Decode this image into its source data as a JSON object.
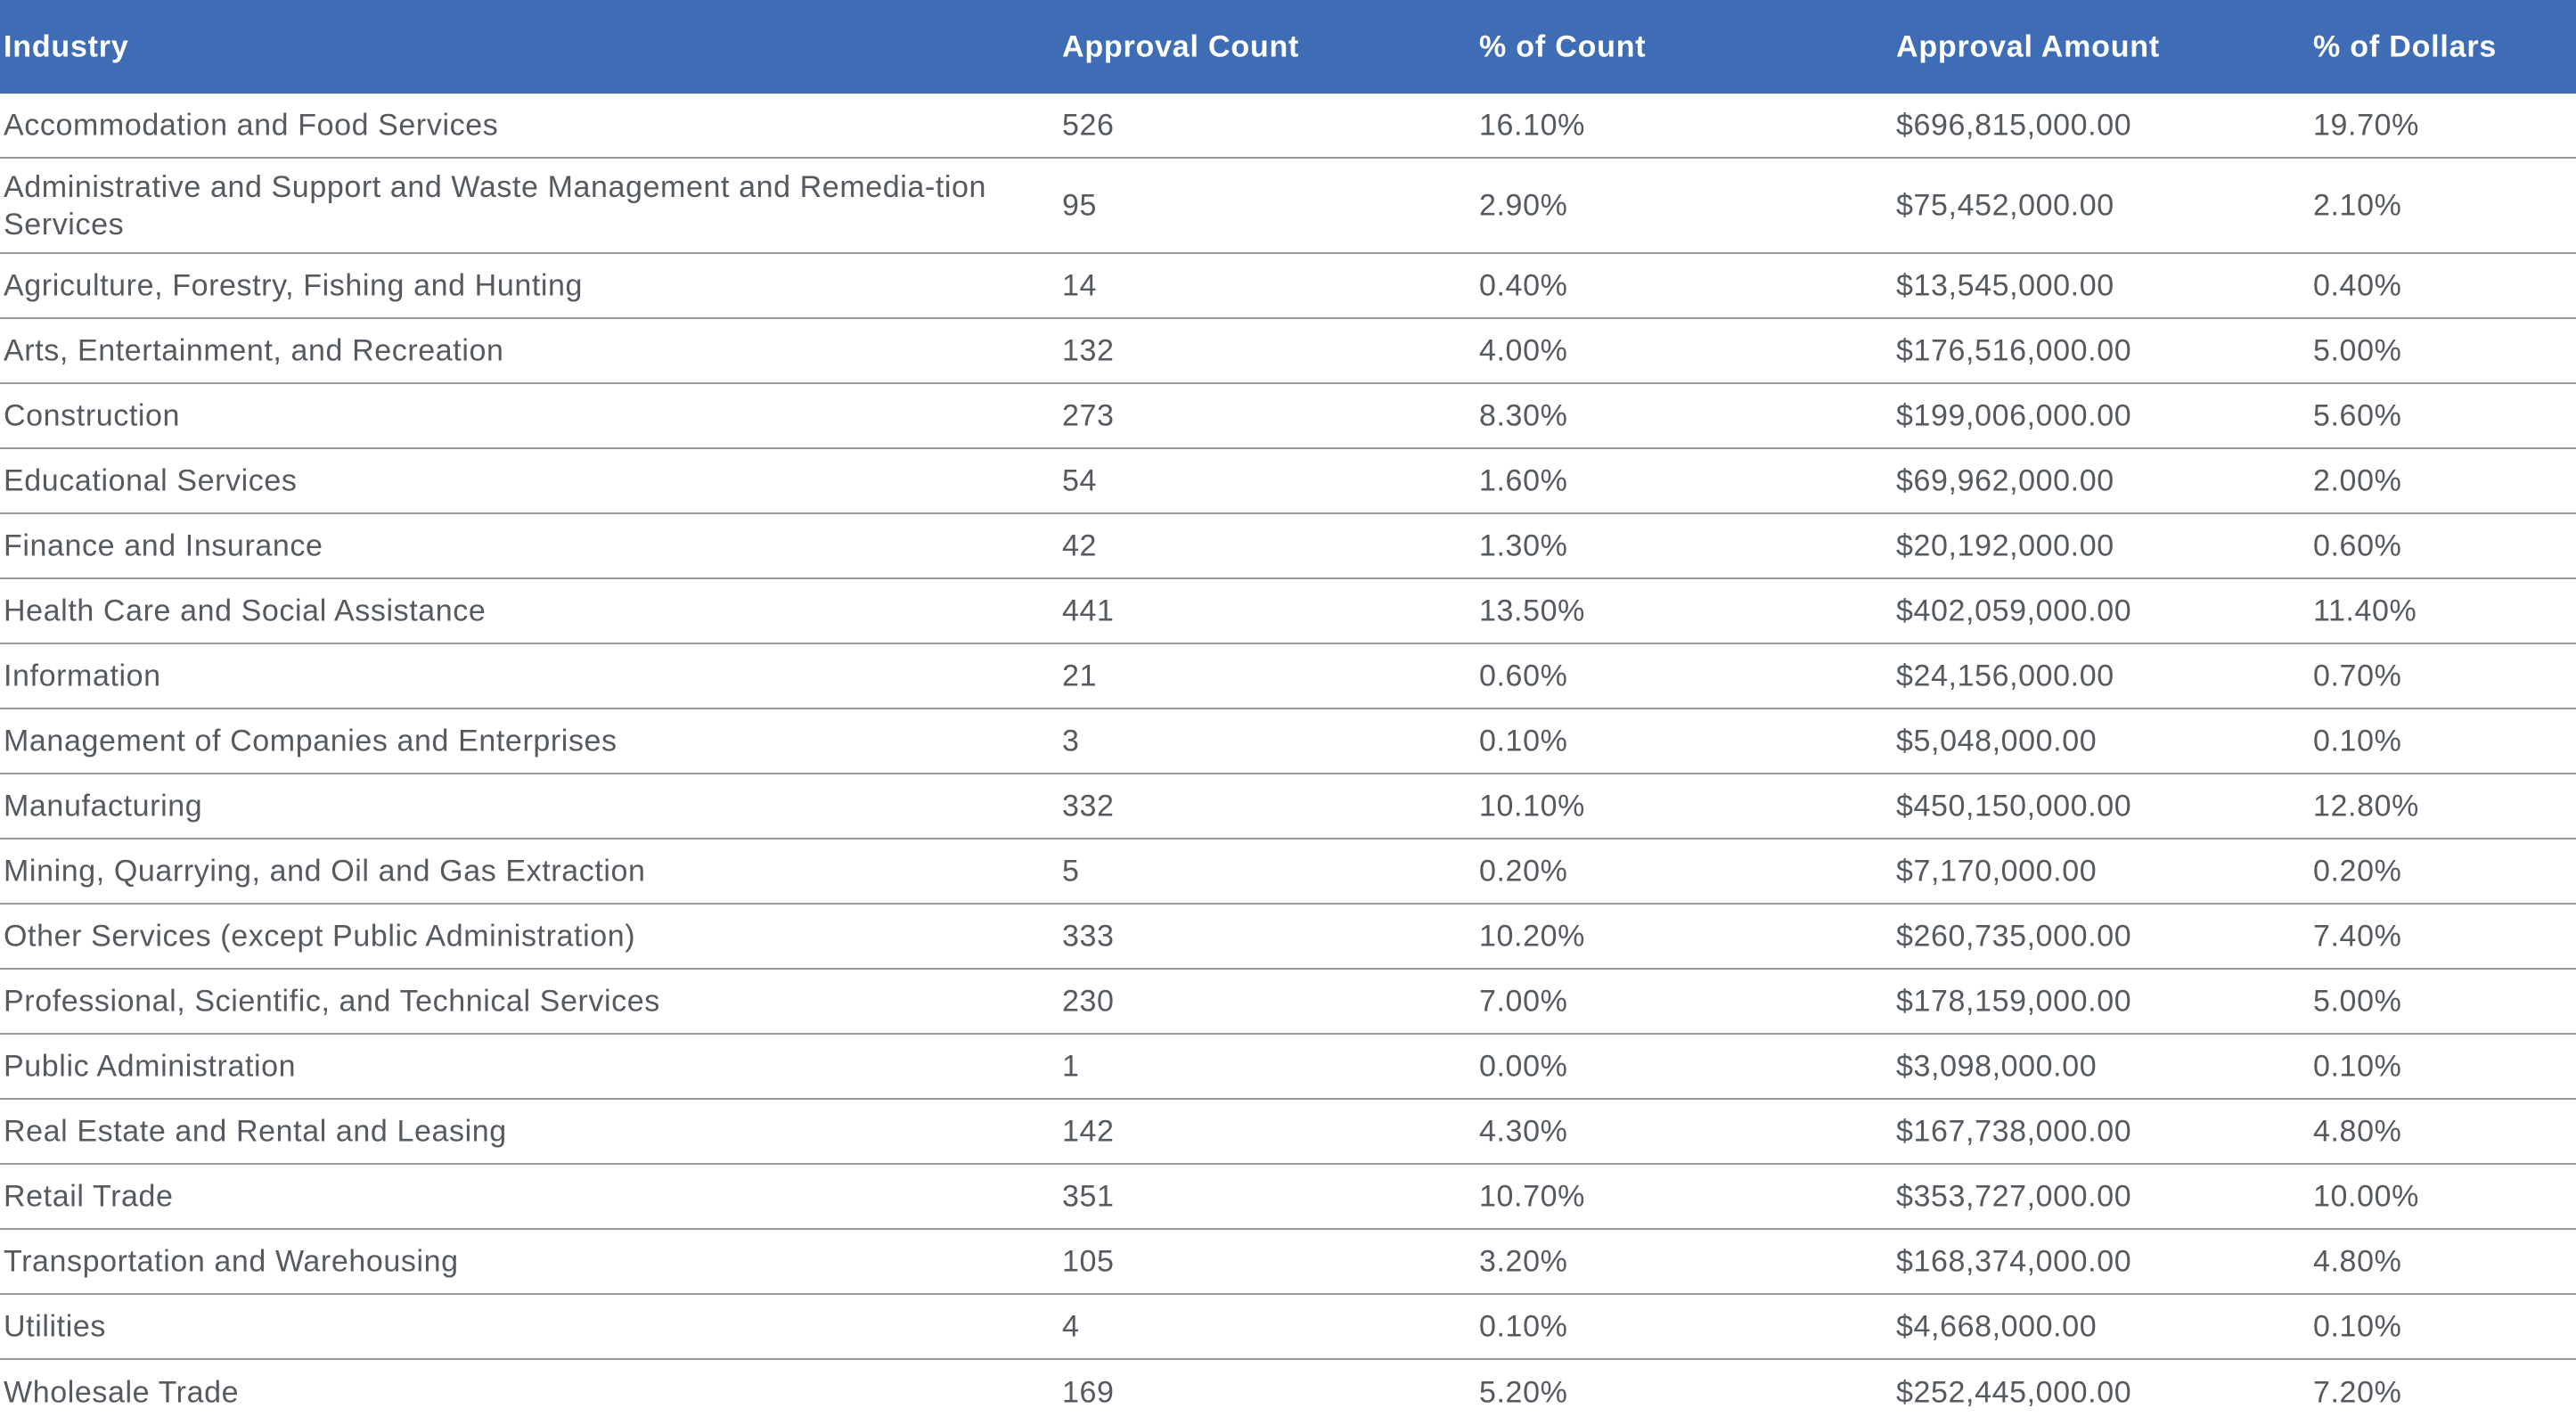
{
  "chart_data": {
    "type": "table",
    "columns": [
      "Industry",
      "Approval Count",
      "% of Count",
      "Approval Amount",
      "% of Dollars"
    ],
    "rows": [
      [
        "Accommodation and Food Services",
        "526",
        "16.10%",
        "$696,815,000.00",
        "19.70%"
      ],
      [
        "Administrative and Support and Waste Management and Remedia-tion Services",
        "95",
        "2.90%",
        "$75,452,000.00",
        "2.10%"
      ],
      [
        "Agriculture, Forestry, Fishing and Hunting",
        "14",
        "0.40%",
        "$13,545,000.00",
        "0.40%"
      ],
      [
        "Arts, Entertainment, and Recreation",
        "132",
        "4.00%",
        "$176,516,000.00",
        "5.00%"
      ],
      [
        "Construction",
        "273",
        "8.30%",
        "$199,006,000.00",
        "5.60%"
      ],
      [
        "Educational Services",
        "54",
        "1.60%",
        "$69,962,000.00",
        "2.00%"
      ],
      [
        "Finance and Insurance",
        "42",
        "1.30%",
        "$20,192,000.00",
        "0.60%"
      ],
      [
        "Health Care and Social Assistance",
        "441",
        "13.50%",
        "$402,059,000.00",
        "11.40%"
      ],
      [
        "Information",
        "21",
        "0.60%",
        "$24,156,000.00",
        "0.70%"
      ],
      [
        "Management of Companies and Enterprises",
        "3",
        "0.10%",
        "$5,048,000.00",
        "0.10%"
      ],
      [
        "Manufacturing",
        "332",
        "10.10%",
        "$450,150,000.00",
        "12.80%"
      ],
      [
        "Mining, Quarrying, and Oil and Gas Extraction",
        "5",
        "0.20%",
        "$7,170,000.00",
        "0.20%"
      ],
      [
        "Other Services (except Public Administration)",
        "333",
        "10.20%",
        "$260,735,000.00",
        "7.40%"
      ],
      [
        "Professional, Scientific, and Technical Services",
        "230",
        "7.00%",
        "$178,159,000.00",
        "5.00%"
      ],
      [
        "Public Administration",
        "1",
        "0.00%",
        "$3,098,000.00",
        "0.10%"
      ],
      [
        "Real Estate and Rental and Leasing",
        "142",
        "4.30%",
        "$167,738,000.00",
        "4.80%"
      ],
      [
        "Retail Trade",
        "351",
        "10.70%",
        "$353,727,000.00",
        "10.00%"
      ],
      [
        "Transportation and Warehousing",
        "105",
        "3.20%",
        "$168,374,000.00",
        "4.80%"
      ],
      [
        "Utilities",
        "4",
        "0.10%",
        "$4,668,000.00",
        "0.10%"
      ],
      [
        "Wholesale Trade",
        "169",
        "5.20%",
        "$252,445,000.00",
        "7.20%"
      ]
    ],
    "colors": {
      "header_bg": "#3f6db5",
      "header_text": "#ffffff",
      "body_text": "#555a60",
      "row_divider": "#9a9a9a"
    }
  }
}
